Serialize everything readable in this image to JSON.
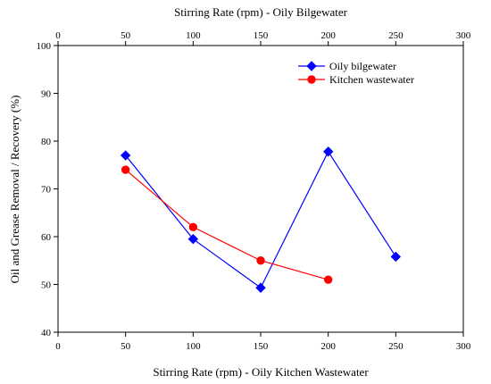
{
  "chart_data": {
    "type": "line",
    "title": "",
    "top_xlabel": "Stirring Rate (rpm) - Oily Bilgewater",
    "xlabel": "Stirring Rate (rpm) - Oily Kitchen Wastewater",
    "ylabel": "Oil and Grease Removal / Recovery (%)",
    "xlim": [
      0,
      300
    ],
    "ylim": [
      40,
      100
    ],
    "x_ticks": [
      0,
      50,
      100,
      150,
      200,
      250,
      300
    ],
    "y_ticks": [
      40,
      50,
      60,
      70,
      80,
      90,
      100
    ],
    "grid": false,
    "legend_position": "top-right",
    "series": [
      {
        "name": "Oily bilgewater",
        "color": "#0000ff",
        "marker": "diamond",
        "x": [
          50,
          100,
          150,
          200,
          250
        ],
        "y": [
          77,
          59.5,
          49.3,
          77.8,
          55.8
        ]
      },
      {
        "name": "Kitchen wastewater",
        "color": "#ff0000",
        "marker": "circle",
        "x": [
          50,
          100,
          150,
          200
        ],
        "y": [
          74,
          62,
          55,
          51
        ]
      }
    ]
  }
}
